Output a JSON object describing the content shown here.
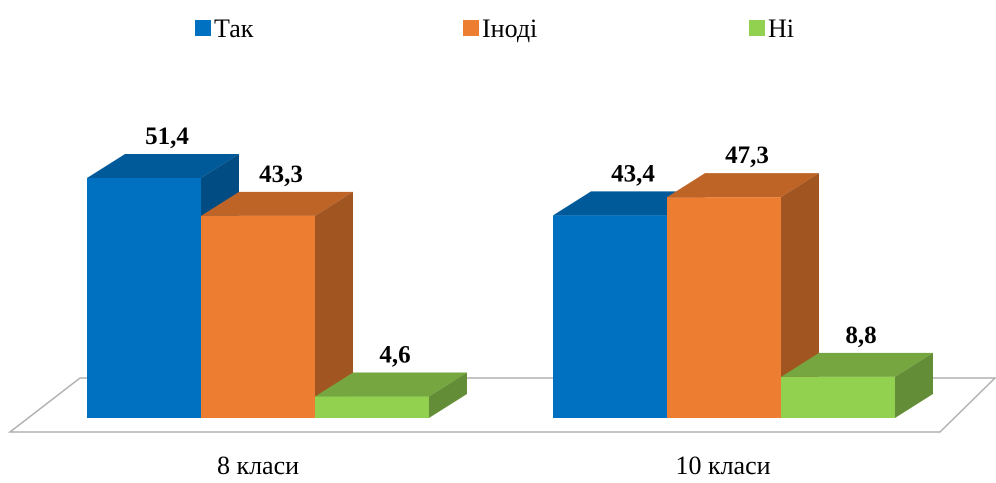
{
  "chart_data": {
    "type": "bar3d",
    "categories": [
      "8 класи",
      "10 класи"
    ],
    "series": [
      {
        "name": "Так",
        "color": "#0070c0",
        "values": [
          51.4,
          43.4
        ],
        "value_labels": [
          "51,4",
          "43,4"
        ]
      },
      {
        "name": "Іноді",
        "color": "#ed7d31",
        "values": [
          43.3,
          47.3
        ],
        "value_labels": [
          "43,3",
          "47,3"
        ]
      },
      {
        "name": "Ні",
        "color": "#92d050",
        "values": [
          4.6,
          8.8
        ],
        "value_labels": [
          "4,6",
          "8,8"
        ]
      }
    ],
    "legend": "top"
  }
}
